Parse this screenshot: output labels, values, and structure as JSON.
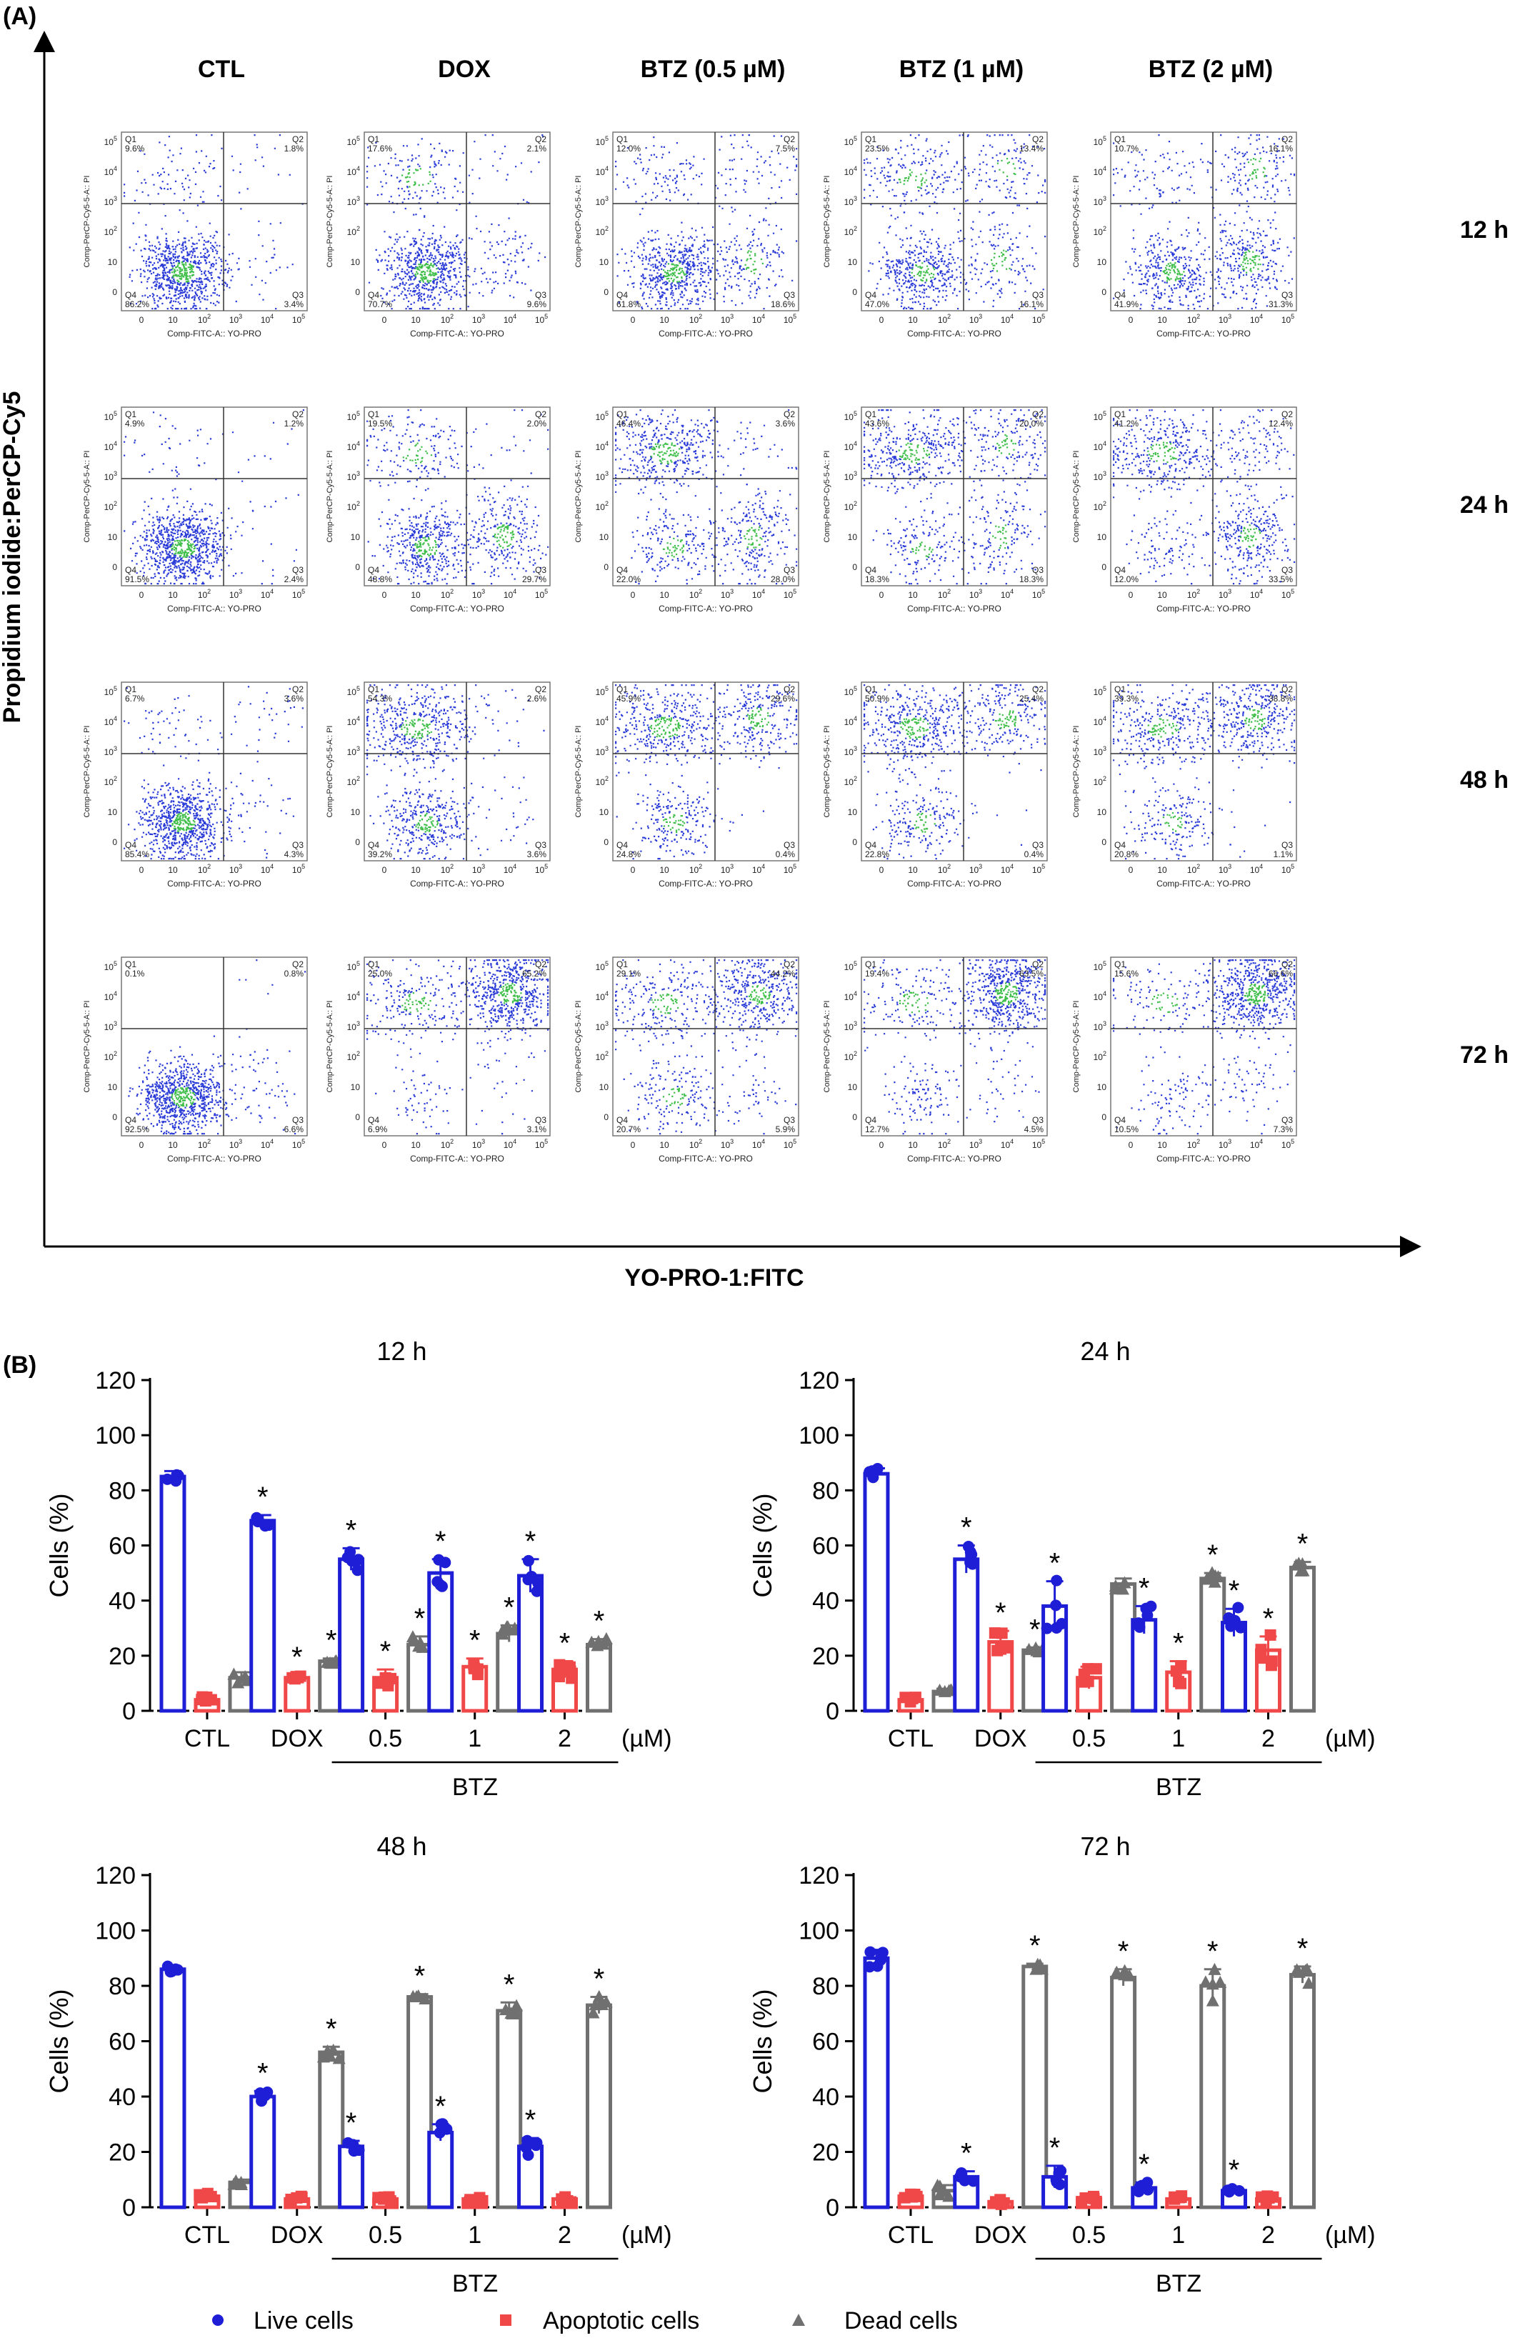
{
  "panel_a": {
    "label": "(A)",
    "x_axis_title": "YO-PRO-1:FITC",
    "y_axis_title": "Propidium iodide:PerCP-Cy5",
    "columns": [
      "CTL",
      "DOX",
      "BTZ (0.5 µM)",
      "BTZ (1 µM)",
      "BTZ (2 µM)"
    ],
    "rows": [
      "12 h",
      "24 h",
      "48 h",
      "72 h"
    ],
    "plot_xlabel": "Comp-FITC-A:: YO-PRO",
    "plot_ylabel": "Comp-PerCP-Cy5-5-A:: PI",
    "tick_labels": [
      "0",
      "10",
      "10",
      "10",
      "10",
      "10"
    ],
    "tick_exponents": [
      "",
      "",
      "2",
      "3",
      "4",
      "5"
    ],
    "quadrant_names": [
      "Q1",
      "Q2",
      "Q3",
      "Q4"
    ],
    "quadrants": [
      [
        [
          "9.6%",
          "1.8%",
          "3.4%",
          "86.2%"
        ],
        [
          "17.6%",
          "2.1%",
          "9.6%",
          "70.7%"
        ],
        [
          "12.0%",
          "7.5%",
          "18.6%",
          "61.8%"
        ],
        [
          "23.5%",
          "13.4%",
          "16.1%",
          "47.0%"
        ],
        [
          "10.7%",
          "16.1%",
          "31.3%",
          "41.9%"
        ]
      ],
      [
        [
          "4.9%",
          "1.2%",
          "2.4%",
          "91.5%"
        ],
        [
          "19.5%",
          "2.0%",
          "29.7%",
          "48.8%"
        ],
        [
          "46.4%",
          "3.6%",
          "28.0%",
          "22.0%"
        ],
        [
          "43.6%",
          "20.0%",
          "18.3%",
          "18.3%"
        ],
        [
          "41.2%",
          "12.4%",
          "33.5%",
          "12.0%"
        ]
      ],
      [
        [
          "6.7%",
          "3.6%",
          "4.3%",
          "85.4%"
        ],
        [
          "54.3%",
          "2.6%",
          "3.6%",
          "39.2%"
        ],
        [
          "45.9%",
          "29.6%",
          "0.4%",
          "24.8%"
        ],
        [
          "50.9%",
          "25.4%",
          "0.4%",
          "22.8%"
        ],
        [
          "39.3%",
          "38.8%",
          "1.1%",
          "20.8%"
        ]
      ],
      [
        [
          "0.1%",
          "0.8%",
          "6.6%",
          "92.5%"
        ],
        [
          "25.0%",
          "65.2%",
          "3.1%",
          "6.9%"
        ],
        [
          "29.1%",
          "44.2%",
          "5.9%",
          "20.7%"
        ],
        [
          "19.4%",
          "63.5%",
          "4.5%",
          "12.7%"
        ],
        [
          "15.6%",
          "66.6%",
          "7.3%",
          "10.5%"
        ]
      ]
    ]
  },
  "panel_b": {
    "label": "(B)",
    "unit_label": "(µM)",
    "btz_label": "BTZ",
    "ylabel": "Cells  (%)",
    "categories": [
      "CTL",
      "DOX",
      "0.5",
      "1",
      "2"
    ],
    "legend": {
      "live": "Live cells",
      "apoptotic": "Apoptotic cells",
      "dead": "Dead cells"
    },
    "significance_mark": "*",
    "colors": {
      "live": "#1e1ed6",
      "apoptotic": "#f04848",
      "dead": "#707070"
    }
  },
  "chart_data": [
    {
      "type": "bar",
      "title": "12 h",
      "ylabel": "Cells  (%)",
      "ylim": [
        0,
        120
      ],
      "yticks": [
        0,
        20,
        40,
        60,
        80,
        100,
        120
      ],
      "categories": [
        "CTL",
        "DOX",
        "0.5",
        "1",
        "2"
      ],
      "series": [
        {
          "name": "Live cells",
          "values": [
            85,
            69,
            55,
            50,
            49
          ],
          "errors": [
            2,
            2,
            4,
            5,
            6
          ],
          "significant": [
            false,
            true,
            true,
            true,
            true
          ]
        },
        {
          "name": "Apoptotic cells",
          "values": [
            4,
            12,
            12,
            16,
            15
          ],
          "errors": [
            1,
            1,
            3,
            3,
            3
          ],
          "significant": [
            false,
            true,
            true,
            true,
            true
          ]
        },
        {
          "name": "Dead cells",
          "values": [
            12,
            18,
            24,
            28,
            24
          ],
          "errors": [
            2,
            1,
            3,
            3,
            2
          ],
          "significant": [
            false,
            true,
            true,
            true,
            true
          ]
        }
      ]
    },
    {
      "type": "bar",
      "title": "24 h",
      "ylabel": "Cells  (%)",
      "ylim": [
        0,
        120
      ],
      "yticks": [
        0,
        20,
        40,
        60,
        80,
        100,
        120
      ],
      "categories": [
        "CTL",
        "DOX",
        "0.5",
        "1",
        "2"
      ],
      "series": [
        {
          "name": "Live cells",
          "values": [
            86,
            55,
            38,
            33,
            32
          ],
          "errors": [
            2,
            5,
            9,
            5,
            5
          ],
          "significant": [
            false,
            true,
            true,
            true,
            true
          ]
        },
        {
          "name": "Apoptotic cells",
          "values": [
            4,
            25,
            12,
            14,
            22
          ],
          "errors": [
            1,
            4,
            4,
            4,
            5
          ],
          "significant": [
            false,
            true,
            false,
            true,
            true
          ]
        },
        {
          "name": "Dead cells",
          "values": [
            7,
            22,
            46,
            48,
            52
          ],
          "errors": [
            1,
            1,
            2,
            2,
            2
          ],
          "significant": [
            false,
            true,
            false,
            true,
            true
          ]
        }
      ]
    },
    {
      "type": "bar",
      "title": "48 h",
      "ylabel": "Cells  (%)",
      "ylim": [
        0,
        120
      ],
      "yticks": [
        0,
        20,
        40,
        60,
        80,
        100,
        120
      ],
      "categories": [
        "CTL",
        "DOX",
        "0.5",
        "1",
        "2"
      ],
      "series": [
        {
          "name": "Live cells",
          "values": [
            86,
            40,
            22,
            27,
            22
          ],
          "errors": [
            1,
            2,
            2,
            3,
            3
          ],
          "significant": [
            false,
            true,
            true,
            true,
            true
          ]
        },
        {
          "name": "Apoptotic cells",
          "values": [
            4,
            3,
            3,
            3,
            3
          ],
          "errors": [
            1,
            1,
            1,
            1,
            1
          ],
          "significant": [
            false,
            false,
            false,
            false,
            false
          ]
        },
        {
          "name": "Dead cells",
          "values": [
            9,
            56,
            76,
            71,
            73
          ],
          "errors": [
            1,
            2,
            1,
            3,
            3
          ],
          "significant": [
            false,
            true,
            true,
            true,
            true
          ]
        }
      ]
    },
    {
      "type": "bar",
      "title": "72 h",
      "ylabel": "Cells  (%)",
      "ylim": [
        0,
        120
      ],
      "yticks": [
        0,
        20,
        40,
        60,
        80,
        100,
        120
      ],
      "categories": [
        "CTL",
        "DOX",
        "0.5",
        "1",
        "2"
      ],
      "series": [
        {
          "name": "Live cells",
          "values": [
            90,
            11,
            11,
            7,
            6
          ],
          "errors": [
            3,
            2,
            4,
            2,
            1
          ],
          "significant": [
            false,
            true,
            true,
            true,
            true
          ]
        },
        {
          "name": "Apoptotic cells",
          "values": [
            4,
            2,
            3,
            3,
            3
          ],
          "errors": [
            1,
            1,
            1,
            1,
            1
          ],
          "significant": [
            false,
            false,
            false,
            false,
            false
          ]
        },
        {
          "name": "Dead cells",
          "values": [
            6,
            87,
            83,
            80,
            84
          ],
          "errors": [
            2,
            1,
            3,
            6,
            3
          ],
          "significant": [
            false,
            true,
            true,
            true,
            true
          ]
        }
      ]
    }
  ]
}
